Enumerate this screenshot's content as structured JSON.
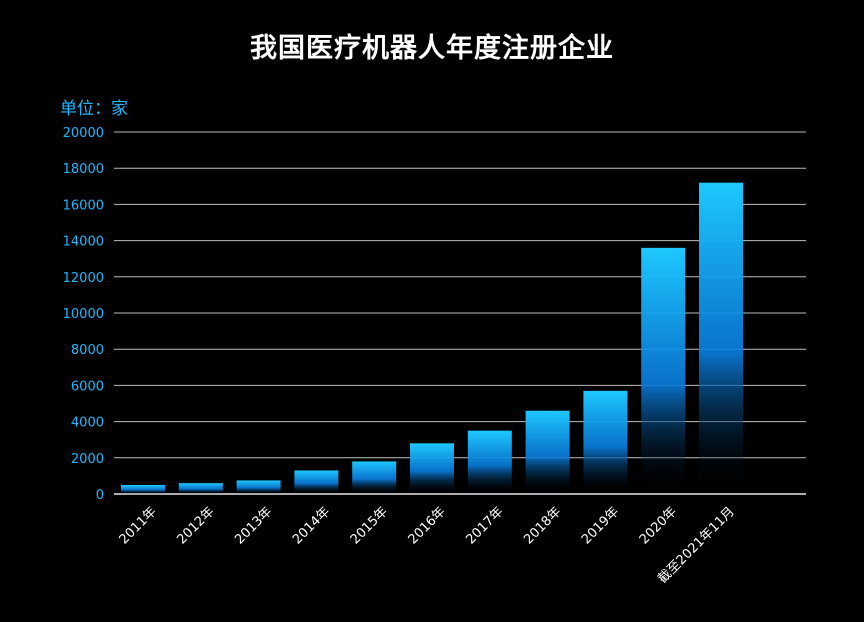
{
  "chart_data": {
    "type": "bar",
    "title": "我国医疗机器人年度注册企业",
    "unit_label": "单位：家",
    "categories": [
      "2011年",
      "2012年",
      "2013年",
      "2014年",
      "2015年",
      "2016年",
      "2017年",
      "2018年",
      "2019年",
      "2020年",
      "截至2021年11月"
    ],
    "values": [
      500,
      600,
      750,
      1300,
      1800,
      2800,
      3500,
      4600,
      5700,
      13600,
      17200
    ],
    "ylim": [
      0,
      20000
    ],
    "yticks": [
      "0",
      "2000",
      "4000",
      "6000",
      "8000",
      "10000",
      "12000",
      "14000",
      "16000",
      "18000",
      "20000"
    ],
    "grid": true,
    "bar_color_top": "#1ec8ff",
    "bar_color_bottom": "#000000"
  }
}
